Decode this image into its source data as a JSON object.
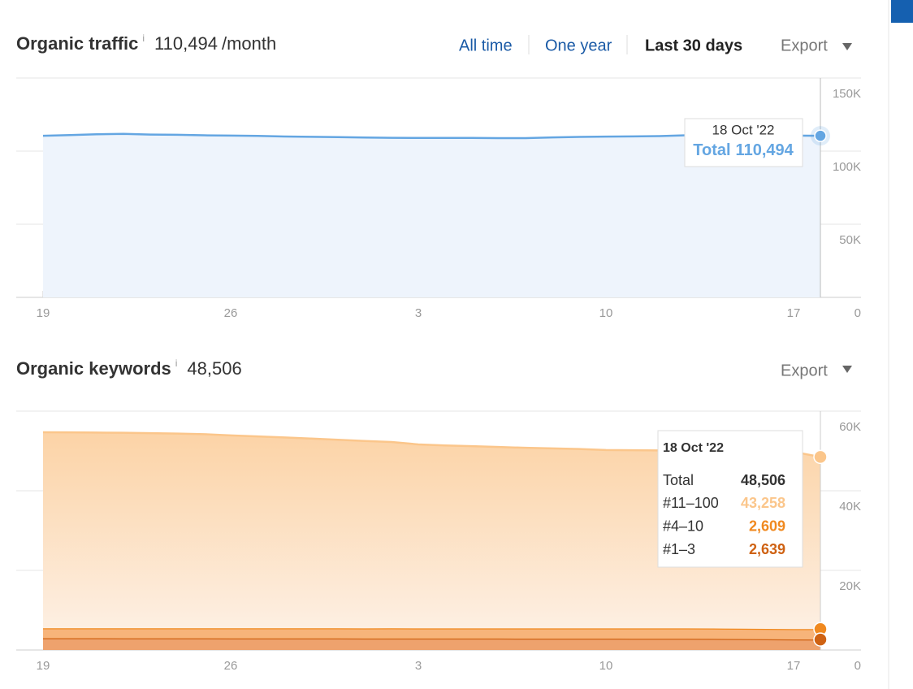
{
  "chart_data": [
    {
      "type": "area",
      "title": "Organic traffic",
      "info": "i",
      "headline": "110,494",
      "headline_unit": "/month",
      "controls": [
        "All time",
        "One year",
        "Last 30 days"
      ],
      "active_control": 2,
      "export": "Export",
      "categories": [
        "19",
        null,
        null,
        null,
        null,
        null,
        null,
        "26",
        null,
        null,
        null,
        null,
        null,
        null,
        "3",
        null,
        null,
        null,
        null,
        null,
        null,
        "10",
        null,
        null,
        null,
        null,
        null,
        null,
        "17",
        null
      ],
      "series": [
        {
          "name": "Total",
          "color": "#64a6e2",
          "values": [
            110500,
            111000,
            111500,
            111800,
            111300,
            111200,
            110800,
            110600,
            110400,
            110000,
            109800,
            109600,
            109300,
            109100,
            109000,
            109000,
            109000,
            108900,
            108900,
            109400,
            109700,
            109900,
            110100,
            110300,
            110800,
            111000,
            110800,
            110700,
            110600,
            110494
          ]
        }
      ],
      "ylim": [
        0,
        150000
      ],
      "yticks": [
        0,
        {
          "value": 50000,
          "label": "50K"
        },
        {
          "value": 100000,
          "label": "100K"
        },
        {
          "value": 150000,
          "label": "150K"
        }
      ],
      "grid": true,
      "tooltip": {
        "title": "18 Oct '22",
        "values": [
          "110,494"
        ]
      }
    },
    {
      "type": "stacked_area",
      "title": "Organic keywords",
      "info": "i",
      "headline": "48,506",
      "export": "Export",
      "categories": [
        "19",
        null,
        null,
        null,
        null,
        null,
        null,
        "26",
        null,
        null,
        null,
        null,
        null,
        null,
        "3",
        null,
        null,
        null,
        null,
        null,
        null,
        "10",
        null,
        null,
        null,
        null,
        null,
        null,
        "17",
        null
      ],
      "series": [
        {
          "name": "#11–100",
          "color": "#fbc68b",
          "values": [
            49250,
            49200,
            49150,
            49100,
            49000,
            48900,
            48750,
            48450,
            48200,
            47950,
            47650,
            47350,
            47050,
            46800,
            46200,
            45950,
            45750,
            45550,
            45350,
            45200,
            45050,
            44800,
            44750,
            44700,
            44650,
            44650,
            44600,
            44550,
            44500,
            43258
          ]
        },
        {
          "name": "#4–10",
          "color": "#f0891f",
          "values": [
            2500,
            2510,
            2510,
            2520,
            2520,
            2530,
            2530,
            2540,
            2540,
            2540,
            2550,
            2550,
            2550,
            2560,
            2560,
            2560,
            2570,
            2570,
            2570,
            2580,
            2580,
            2580,
            2590,
            2590,
            2600,
            2600,
            2600,
            2600,
            2600,
            2609
          ]
        },
        {
          "name": "#1–3",
          "color": "#cf6213",
          "values": [
            2950,
            2950,
            2950,
            2940,
            2940,
            2930,
            2930,
            2920,
            2920,
            2910,
            2900,
            2900,
            2890,
            2890,
            2880,
            2880,
            2870,
            2870,
            2860,
            2860,
            2850,
            2850,
            2840,
            2840,
            2830,
            2800,
            2760,
            2700,
            2660,
            2639
          ]
        }
      ],
      "ylim": [
        0,
        60000
      ],
      "yticks": [
        0,
        {
          "value": 20000,
          "label": "20K"
        },
        {
          "value": 40000,
          "label": "40K"
        },
        {
          "value": 60000,
          "label": "60K"
        }
      ],
      "grid": true,
      "tooltip": {
        "title": "18 Oct '22",
        "total_label": "Total",
        "values": [
          "43,258",
          "2,609",
          "2,639"
        ]
      }
    }
  ]
}
